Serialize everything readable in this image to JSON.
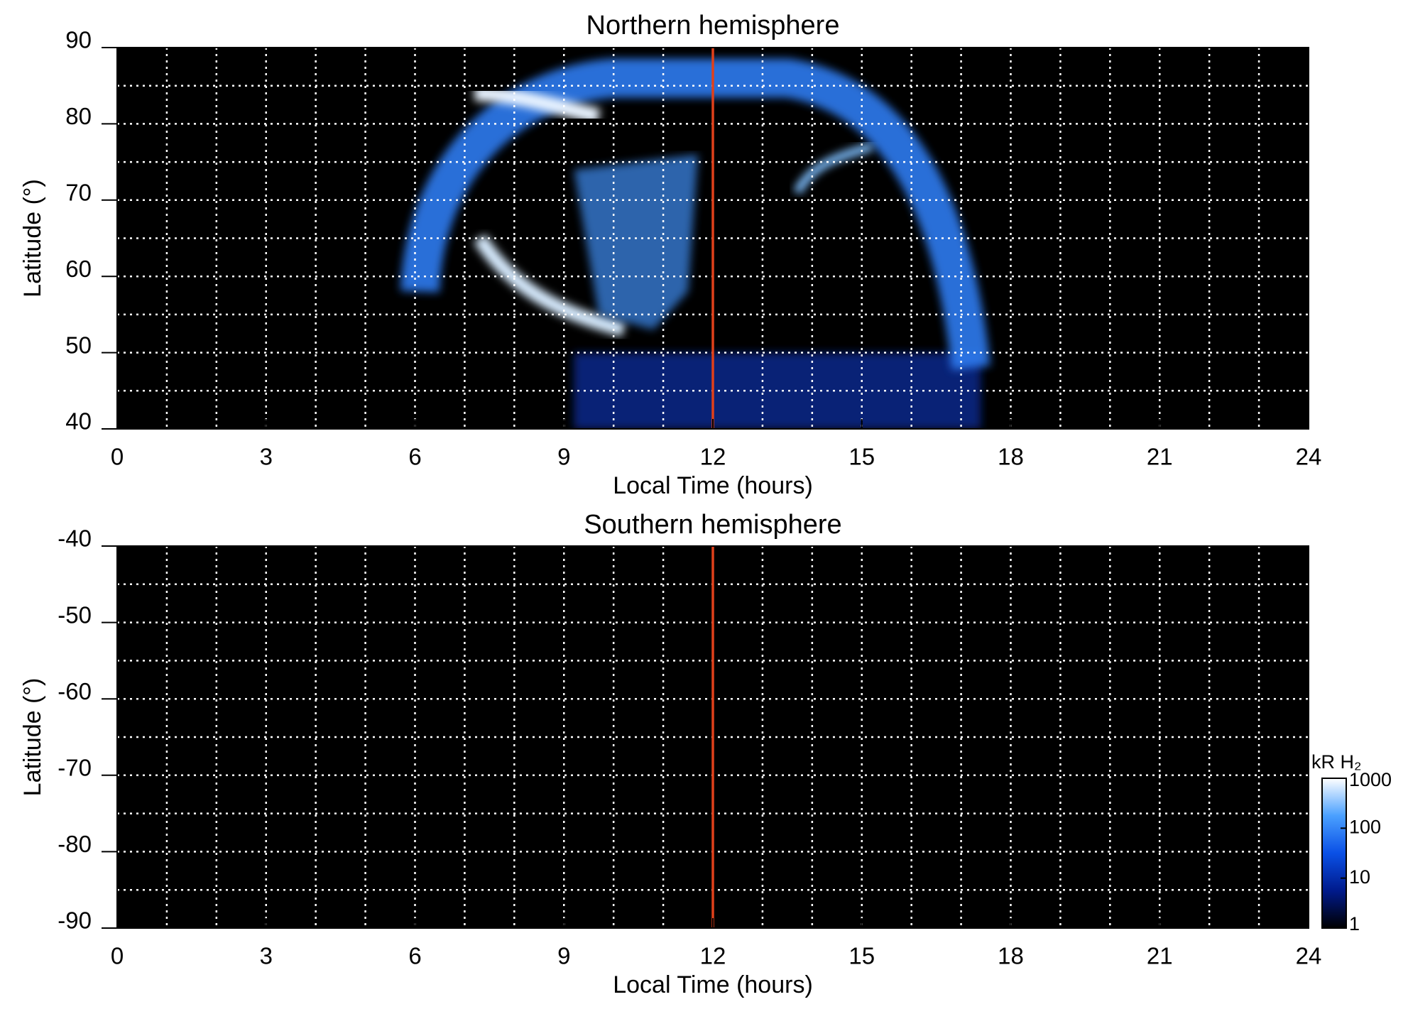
{
  "chart_data": [
    {
      "type": "heatmap",
      "title": "Northern hemisphere",
      "xlabel": "Local Time (hours)",
      "ylabel": "Latitude (°)",
      "xlim": [
        0,
        24
      ],
      "ylim": [
        40,
        90
      ],
      "xticks": [
        0,
        3,
        6,
        9,
        12,
        15,
        18,
        21,
        24
      ],
      "yticks": [
        40,
        50,
        60,
        70,
        80,
        90
      ],
      "grid_xticks": [
        1,
        2,
        3,
        4,
        5,
        6,
        7,
        8,
        9,
        10,
        11,
        12,
        13,
        14,
        15,
        16,
        17,
        18,
        19,
        20,
        21,
        22,
        23
      ],
      "grid_yticks": [
        45,
        50,
        55,
        60,
        65,
        70,
        75,
        80,
        85
      ],
      "background": "#000000",
      "grid_color": "#ffffff",
      "vline": {
        "x": 12,
        "color": "#e0401a"
      }
    },
    {
      "type": "heatmap",
      "title": "Southern hemisphere",
      "xlabel": "Local Time (hours)",
      "ylabel": "Latitude (°)",
      "xlim": [
        0,
        24
      ],
      "ylim": [
        -90,
        -40
      ],
      "xticks": [
        0,
        3,
        6,
        9,
        12,
        15,
        18,
        21,
        24
      ],
      "yticks": [
        -40,
        -50,
        -60,
        -70,
        -80,
        -90
      ],
      "grid_xticks": [
        1,
        2,
        3,
        4,
        5,
        6,
        7,
        8,
        9,
        10,
        11,
        12,
        13,
        14,
        15,
        16,
        17,
        18,
        19,
        20,
        21,
        22,
        23
      ],
      "grid_yticks": [
        -45,
        -50,
        -55,
        -60,
        -65,
        -70,
        -75,
        -80,
        -85
      ],
      "background": "#000000",
      "grid_color": "#ffffff",
      "vline": {
        "x": 12,
        "color": "#e0401a"
      },
      "colorbar": {
        "label": "kR H₂",
        "scale": "log",
        "lim": [
          1,
          1000
        ],
        "ticks": [
          1,
          10,
          100,
          1000
        ],
        "colors": [
          "#000000",
          "#001a8c",
          "#0a50e6",
          "#4aa0ff",
          "#ffffff"
        ]
      }
    }
  ]
}
